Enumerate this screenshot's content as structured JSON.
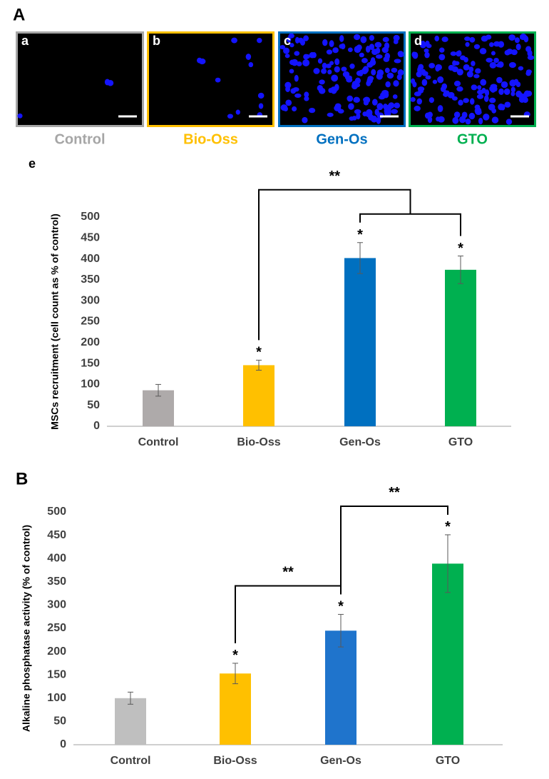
{
  "panel_a": {
    "label": "A",
    "images": [
      {
        "letter": "a",
        "caption": "Control",
        "color": "#a6a6a6"
      },
      {
        "letter": "b",
        "caption": "Bio-Oss",
        "color": "#ffc000"
      },
      {
        "letter": "c",
        "caption": "Gen-Os",
        "color": "#0070c0"
      },
      {
        "letter": "d",
        "caption": "GTO",
        "color": "#00b050"
      }
    ]
  },
  "panel_b_label": "B",
  "chart_data": [
    {
      "type": "bar",
      "label": "e",
      "y_label": "MSCs recruitment (cell count as % of control)",
      "categories": [
        "Control",
        "Bio-Oss",
        "Gen-Os",
        "GTO"
      ],
      "values": [
        86,
        146,
        402,
        374
      ],
      "errors": [
        14,
        12,
        37,
        33
      ],
      "colors": [
        "#aeaaaa",
        "#ffc000",
        "#0070c0",
        "#00b050"
      ],
      "significance": [
        null,
        "*",
        "*",
        "*"
      ],
      "brackets": [
        {
          "from": 1,
          "to": [
            2,
            3
          ],
          "label": "**"
        }
      ],
      "ylim": [
        0,
        500
      ],
      "yticks": [
        0,
        50,
        100,
        150,
        200,
        250,
        300,
        350,
        400,
        450,
        500
      ]
    },
    {
      "type": "bar",
      "y_label": "Alkaline phosphatase activity (% of control)",
      "categories": [
        "Control",
        "Bio-Oss",
        "Gen-Os",
        "GTO"
      ],
      "values": [
        100,
        153,
        245,
        389
      ],
      "errors": [
        13,
        22,
        35,
        62
      ],
      "colors": [
        "#bfbfbf",
        "#ffc000",
        "#1f74cc",
        "#00b050"
      ],
      "significance": [
        null,
        "*",
        "*",
        "*"
      ],
      "brackets": [
        {
          "from": 1,
          "to": [
            2
          ],
          "label": "**"
        },
        {
          "from": 2,
          "to": [
            3
          ],
          "label": "**"
        }
      ],
      "ylim": [
        0,
        500
      ],
      "yticks": [
        0,
        50,
        100,
        150,
        200,
        250,
        300,
        350,
        400,
        450,
        500
      ]
    }
  ]
}
